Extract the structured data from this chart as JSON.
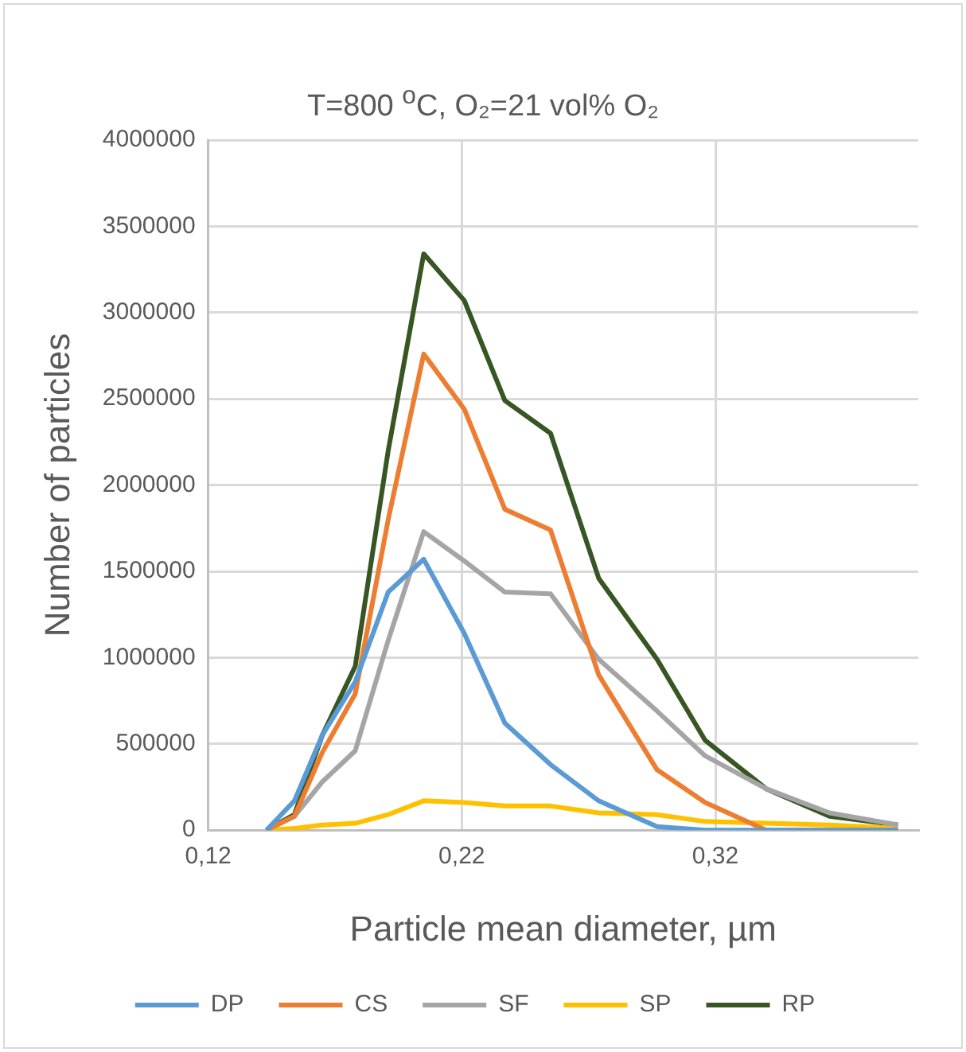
{
  "chart_data": {
    "type": "line",
    "title": "T=800 $^{o}$C, O₂=21 vol% O₂",
    "xlabel": "Particle mean diameter, µm",
    "ylabel": "Number of particles",
    "x": [
      0.143,
      0.154,
      0.165,
      0.178,
      0.191,
      0.205,
      0.221,
      0.237,
      0.255,
      0.274,
      0.297,
      0.316,
      0.34,
      0.365,
      0.392
    ],
    "xlim": [
      0.12,
      0.4
    ],
    "xticks": [
      {
        "value": 0.12,
        "label": "0,12"
      },
      {
        "value": 0.22,
        "label": "0,22"
      },
      {
        "value": 0.32,
        "label": "0,32"
      }
    ],
    "ylim": [
      0,
      4000000
    ],
    "yticks": [
      0,
      500000,
      1000000,
      1500000,
      2000000,
      2500000,
      3000000,
      3500000,
      4000000
    ],
    "grid": true,
    "legend": "bottom",
    "marker": "none",
    "line_style": "solid",
    "series": [
      {
        "name": "DP",
        "color": "#5b9bd5",
        "values": [
          0,
          170000,
          550000,
          860000,
          1380000,
          1570000,
          1140000,
          620000,
          380000,
          170000,
          20000,
          0,
          0,
          0,
          0
        ]
      },
      {
        "name": "CS",
        "color": "#ed7d31",
        "values": [
          0,
          80000,
          450000,
          790000,
          1800000,
          2760000,
          2440000,
          1860000,
          1740000,
          900000,
          350000,
          160000,
          0,
          0,
          0
        ]
      },
      {
        "name": "SF",
        "color": "#a5a5a5",
        "values": [
          0,
          80000,
          280000,
          460000,
          1100000,
          1730000,
          1560000,
          1380000,
          1370000,
          990000,
          690000,
          430000,
          240000,
          100000,
          30000
        ]
      },
      {
        "name": "SP",
        "color": "#ffc000",
        "values": [
          0,
          10000,
          30000,
          40000,
          90000,
          170000,
          160000,
          140000,
          140000,
          100000,
          90000,
          50000,
          40000,
          30000,
          10000
        ]
      },
      {
        "name": "RP",
        "color": "#375623",
        "values": [
          0,
          90000,
          550000,
          950000,
          2200000,
          3340000,
          3070000,
          2490000,
          2300000,
          1460000,
          990000,
          520000,
          240000,
          80000,
          30000
        ]
      }
    ]
  }
}
